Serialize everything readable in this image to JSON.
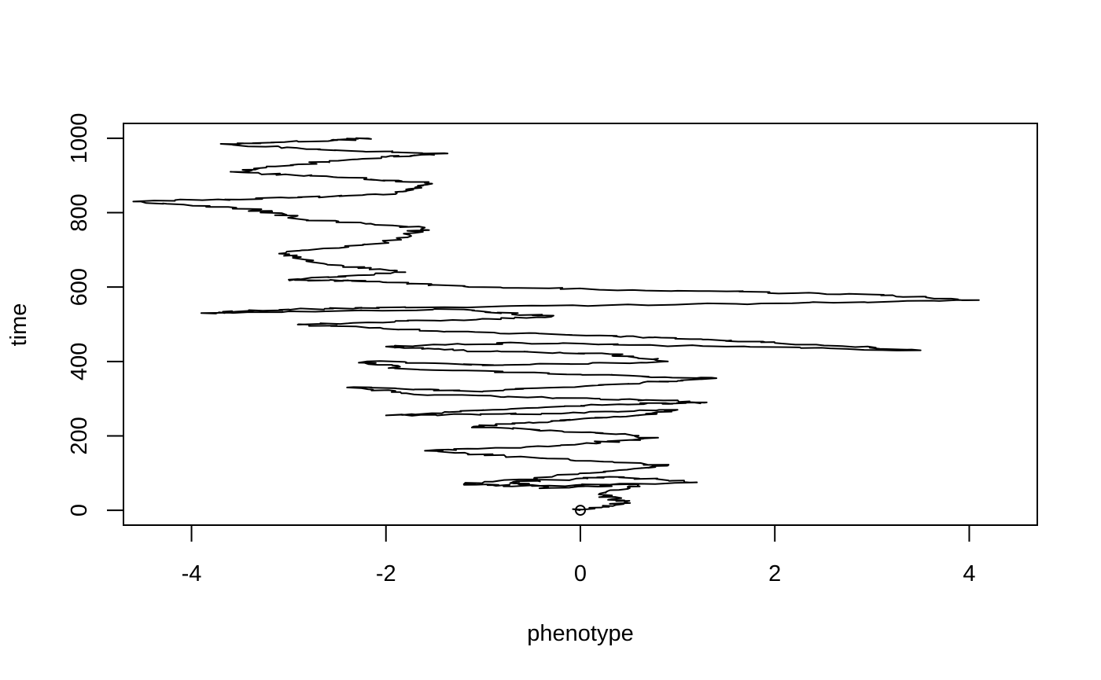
{
  "chart_data": {
    "type": "line",
    "title": "",
    "xlabel": "phenotype",
    "ylabel": "time",
    "xlim": [
      -4.7,
      4.7
    ],
    "ylim": [
      -40,
      1040
    ],
    "x_ticks": [
      -4,
      -2,
      0,
      2,
      4
    ],
    "y_ticks": [
      0,
      200,
      400,
      600,
      800,
      1000
    ],
    "x_tick_labels": [
      "-4",
      "-2",
      "0",
      "2",
      "4"
    ],
    "y_tick_labels": [
      "0",
      "200",
      "400",
      "600",
      "800",
      "1000"
    ],
    "grid": false,
    "legend": "none",
    "line_color": "#000000",
    "start_point": {
      "x": 0,
      "y": 0,
      "marker": "open-circle"
    },
    "series": [
      {
        "x": [
          0,
          0.45,
          0.2,
          0.6,
          -0.3,
          -0.7,
          0.3,
          1.2,
          -0.5,
          -1.2,
          0.1,
          0.9,
          -0.4,
          -1.6,
          -0.2,
          0.8,
          0.1,
          -1.1,
          -0.3,
          0.6,
          1.0,
          -0.4,
          -2.0,
          -0.9,
          0.4,
          1.3,
          0.2,
          -1.5,
          -2.4,
          -1.0,
          0.5,
          1.4,
          0.0,
          -1.8,
          -2.2,
          -0.8,
          0.9,
          0.3,
          -1.3,
          -2.0,
          -0.6,
          1.5,
          3.5,
          2.0,
          1.2,
          0.2,
          -1.4,
          -2.9,
          -1.5,
          -0.3,
          -1.2,
          -3.9,
          -3.0,
          -1.8,
          1.6,
          4.1,
          3.0,
          1.0,
          -1.0,
          -2.2,
          -3.0,
          -1.8,
          -2.6,
          -3.1,
          -2.0,
          -1.6,
          -2.8,
          -3.4,
          -4.6,
          -3.0,
          -1.9,
          -1.6,
          -2.5,
          -3.6,
          -2.9,
          -2.0,
          -1.4,
          -2.7,
          -3.7,
          -2.5,
          -2.2
        ],
        "y": [
          0,
          20,
          45,
          70,
          60,
          75,
          90,
          75,
          65,
          70,
          100,
          120,
          140,
          160,
          175,
          195,
          210,
          225,
          240,
          255,
          270,
          260,
          255,
          270,
          285,
          290,
          300,
          310,
          330,
          320,
          340,
          355,
          365,
          380,
          400,
          390,
          400,
          420,
          430,
          440,
          450,
          440,
          430,
          450,
          460,
          470,
          480,
          500,
          510,
          520,
          540,
          530,
          540,
          545,
          555,
          565,
          580,
          590,
          600,
          615,
          620,
          640,
          660,
          690,
          720,
          760,
          780,
          810,
          830,
          840,
          850,
          880,
          895,
          910,
          930,
          950,
          960,
          970,
          985,
          995,
          1000
        ]
      }
    ]
  }
}
